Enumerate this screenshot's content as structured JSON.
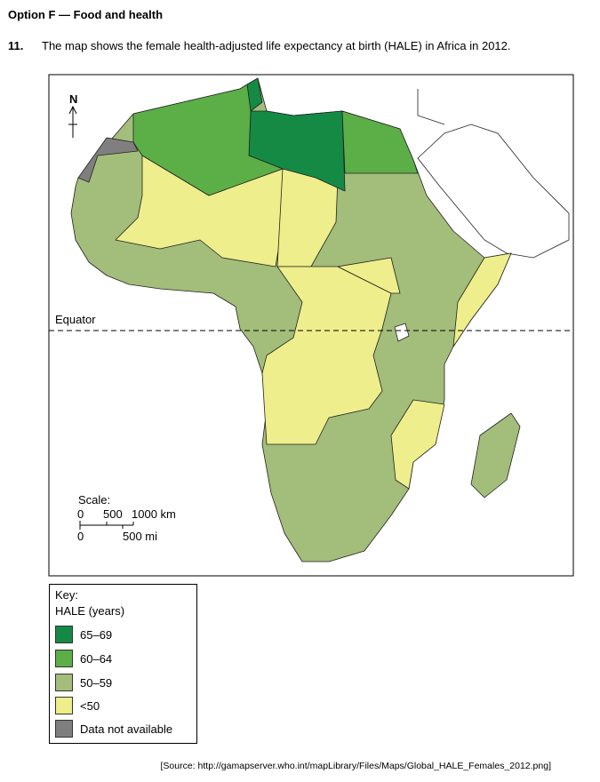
{
  "header": {
    "title": "Option F — Food and health"
  },
  "question": {
    "number": "11.",
    "text": "The map shows the female health-adjusted life expectancy at birth (HALE) in Africa in 2012."
  },
  "map": {
    "north": "N",
    "equator": "Equator",
    "scale": {
      "title": "Scale:",
      "km_labels": [
        "0",
        "500",
        "1000 km"
      ],
      "mi_labels": [
        "0",
        "500 mi"
      ]
    }
  },
  "key": {
    "title": "Key:",
    "subtitle": "HALE (years)",
    "items": [
      "65–69",
      "60–64",
      "50–59",
      "<50",
      "Data not available"
    ]
  },
  "source": "[Source: http://gamapserver.who.int/mapLibrary/Files/Maps/Global_HALE_Females_2012.png]"
}
